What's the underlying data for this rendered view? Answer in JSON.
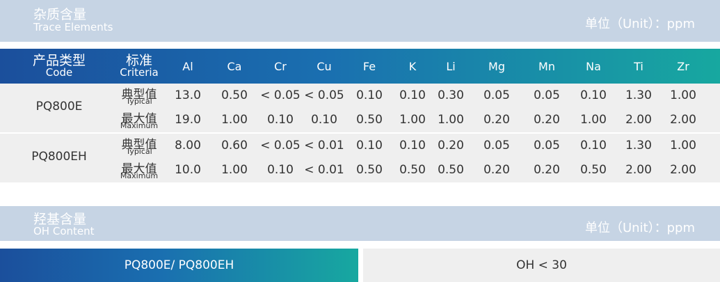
{
  "trace": {
    "title_cn": "杂质含量",
    "title_en": "Trace Elements",
    "unit": "单位（Unit）：ppm",
    "header": {
      "code_cn": "产品类型",
      "code_en": "Code",
      "criteria_cn": "标准",
      "criteria_en": "Criteria",
      "elements": [
        "Al",
        "Ca",
        "Cr",
        "Cu",
        "Fe",
        "K",
        "Li",
        "Mg",
        "Mn",
        "Na",
        "Ti",
        "Zr"
      ]
    },
    "products": [
      {
        "name": "PQ800E",
        "rows": [
          {
            "label_cn": "典型值",
            "label_en": "Typical",
            "values": [
              "13.0",
              "0.50",
              "< 0.05",
              "< 0.05",
              "0.10",
              "0.10",
              "0.30",
              "0.05",
              "0.05",
              "0.10",
              "1.30",
              "1.00"
            ]
          },
          {
            "label_cn": "最大值",
            "label_en": "Maximum",
            "values": [
              "19.0",
              "1.00",
              "0.10",
              "0.10",
              "0.50",
              "1.00",
              "1.00",
              "0.20",
              "0.20",
              "1.00",
              "2.00",
              "2.00"
            ]
          }
        ]
      },
      {
        "name": "PQ800EH",
        "rows": [
          {
            "label_cn": "典型值",
            "label_en": "Typical",
            "values": [
              "8.00",
              "0.60",
              "< 0.05",
              "< 0.01",
              "0.10",
              "0.10",
              "0.20",
              "0.05",
              "0.05",
              "0.10",
              "1.30",
              "1.00"
            ]
          },
          {
            "label_cn": "最大值",
            "label_en": "Maximum",
            "values": [
              "10.0",
              "1.00",
              "0.10",
              "< 0.01",
              "0.50",
              "0.50",
              "0.50",
              "0.20",
              "0.20",
              "0.50",
              "2.00",
              "2.00"
            ]
          }
        ]
      }
    ]
  },
  "oh": {
    "title_cn": "羟基含量",
    "title_en": "OH Content",
    "unit": "单位（Unit）：ppm",
    "product": "PQ800E/ PQ800EH",
    "value": "OH < 30"
  }
}
